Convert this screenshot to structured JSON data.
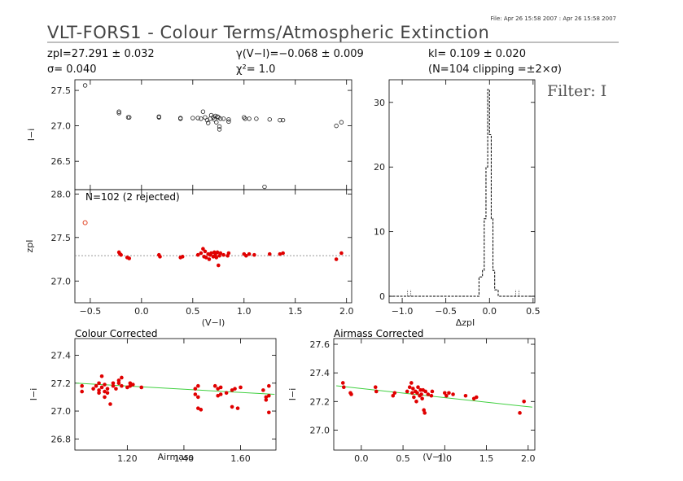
{
  "header": {
    "file_info": "File: Apr 26 15:58 2007 : Apr 26 15:58 2007",
    "title": "VLT-FORS1 - Colour Terms/Atmospheric Extinction",
    "zp_line": "zpI=27.291 ± 0.032",
    "sigma_line": "σ= 0.040",
    "gamma_line": "γ(V−I)=−0.068 ± 0.009",
    "chi_line": "χ²= 1.0",
    "k_line": "kI= 0.109 ± 0.020",
    "clip_line": "(N=104 clipping =±2×σ)",
    "filter_label": "Filter: I"
  },
  "chart_data": [
    {
      "type": "scatter",
      "panel": "I-i vs (V-I)",
      "ylabel": "I−i",
      "xlim": [
        -0.65,
        2.05
      ],
      "ylim": [
        26.1,
        27.65
      ],
      "yticks": [
        26.5,
        27.0,
        27.5
      ],
      "points": [
        [
          -0.55,
          27.57
        ],
        [
          -0.22,
          27.2
        ],
        [
          -0.22,
          27.18
        ],
        [
          -0.13,
          27.12
        ],
        [
          -0.12,
          27.12
        ],
        [
          0.17,
          27.13
        ],
        [
          0.17,
          27.12
        ],
        [
          0.38,
          27.1
        ],
        [
          0.38,
          27.11
        ],
        [
          0.5,
          27.11
        ],
        [
          0.55,
          27.11
        ],
        [
          0.58,
          27.1
        ],
        [
          0.6,
          27.2
        ],
        [
          0.62,
          27.12
        ],
        [
          0.64,
          27.08
        ],
        [
          0.65,
          27.04
        ],
        [
          0.67,
          27.1
        ],
        [
          0.68,
          27.15
        ],
        [
          0.7,
          27.12
        ],
        [
          0.71,
          27.09
        ],
        [
          0.72,
          27.14
        ],
        [
          0.73,
          27.05
        ],
        [
          0.74,
          27.13
        ],
        [
          0.75,
          27.12
        ],
        [
          0.76,
          26.95
        ],
        [
          0.76,
          26.99
        ],
        [
          0.77,
          27.1
        ],
        [
          0.8,
          27.1
        ],
        [
          0.85,
          27.06
        ],
        [
          0.85,
          27.09
        ],
        [
          1.0,
          27.12
        ],
        [
          1.01,
          27.1
        ],
        [
          1.05,
          27.1
        ],
        [
          1.12,
          27.1
        ],
        [
          1.2,
          26.14
        ],
        [
          1.25,
          27.09
        ],
        [
          1.35,
          27.08
        ],
        [
          1.38,
          27.08
        ],
        [
          1.9,
          27.0
        ],
        [
          1.95,
          27.05
        ]
      ]
    },
    {
      "type": "scatter",
      "panel": "zpI vs (V-I)",
      "ylabel": "zpI",
      "xlabel": "(V−I)",
      "annotation": "N=102 (2 rejected)",
      "xlim": [
        -0.65,
        2.05
      ],
      "ylim": [
        26.75,
        28.05
      ],
      "xticks": [
        -0.5,
        0.0,
        0.5,
        1.0,
        1.5,
        2.0
      ],
      "xtick_labels": [
        "−0.5",
        "0.0",
        "0.5",
        "1.0",
        "1.5",
        "2.0"
      ],
      "yticks": [
        27.0,
        27.5,
        28.0
      ],
      "reference_level": 27.291,
      "rejected_points": [
        [
          -0.55,
          27.67
        ]
      ],
      "points": [
        [
          -0.22,
          27.33
        ],
        [
          -0.21,
          27.31
        ],
        [
          -0.2,
          27.3
        ],
        [
          -0.14,
          27.27
        ],
        [
          -0.12,
          27.26
        ],
        [
          0.17,
          27.3
        ],
        [
          0.18,
          27.28
        ],
        [
          0.38,
          27.27
        ],
        [
          0.4,
          27.28
        ],
        [
          0.55,
          27.3
        ],
        [
          0.58,
          27.32
        ],
        [
          0.6,
          27.37
        ],
        [
          0.61,
          27.28
        ],
        [
          0.62,
          27.34
        ],
        [
          0.63,
          27.27
        ],
        [
          0.65,
          27.31
        ],
        [
          0.66,
          27.25
        ],
        [
          0.67,
          27.3
        ],
        [
          0.68,
          27.32
        ],
        [
          0.7,
          27.28
        ],
        [
          0.71,
          27.33
        ],
        [
          0.72,
          27.3
        ],
        [
          0.73,
          27.27
        ],
        [
          0.74,
          27.33
        ],
        [
          0.75,
          27.18
        ],
        [
          0.76,
          27.29
        ],
        [
          0.77,
          27.32
        ],
        [
          0.8,
          27.3
        ],
        [
          0.84,
          27.29
        ],
        [
          0.85,
          27.32
        ],
        [
          1.0,
          27.31
        ],
        [
          1.02,
          27.29
        ],
        [
          1.05,
          27.31
        ],
        [
          1.1,
          27.3
        ],
        [
          1.25,
          27.31
        ],
        [
          1.35,
          27.31
        ],
        [
          1.38,
          27.32
        ],
        [
          1.9,
          27.25
        ],
        [
          1.95,
          27.32
        ]
      ]
    },
    {
      "type": "histogram",
      "panel": "ΔzpI distribution",
      "xlabel": "ΔzpI",
      "xlim": [
        -1.15,
        0.52
      ],
      "ylim": [
        -1,
        33.5
      ],
      "xticks": [
        -1.0,
        -0.5,
        0.0,
        0.5
      ],
      "xtick_labels": [
        "−1.0",
        "−0.5",
        "0.0",
        "0.5"
      ],
      "yticks": [
        0,
        10,
        20,
        30
      ],
      "bin_edges": [
        -1.15,
        -0.12,
        -0.08,
        -0.06,
        -0.04,
        -0.02,
        0.0,
        0.02,
        0.04,
        0.06,
        0.1,
        0.52
      ],
      "counts": [
        0,
        3,
        4,
        12,
        20,
        32,
        25,
        12,
        4,
        1,
        0
      ],
      "outlier_marks": [
        [
          -0.92,
          1
        ],
        [
          0.32,
          1
        ]
      ]
    },
    {
      "type": "scatter",
      "panel": "Colour Corrected",
      "title": "Colour Corrected",
      "xlabel": "Airmass",
      "ylabel": "I−i",
      "xlim": [
        1.015,
        1.725
      ],
      "ylim": [
        26.72,
        27.52
      ],
      "xticks": [
        1.2,
        1.4,
        1.6
      ],
      "xtick_labels": [
        "1.20",
        "1.40",
        "1.60"
      ],
      "yticks": [
        26.8,
        27.0,
        27.2,
        27.4
      ],
      "fit_line": [
        [
          1.02,
          27.2
        ],
        [
          1.72,
          27.12
        ]
      ],
      "points": [
        [
          1.04,
          27.18
        ],
        [
          1.04,
          27.14
        ],
        [
          1.08,
          27.16
        ],
        [
          1.09,
          27.18
        ],
        [
          1.1,
          27.2
        ],
        [
          1.1,
          27.15
        ],
        [
          1.1,
          27.13
        ],
        [
          1.11,
          27.25
        ],
        [
          1.11,
          27.17
        ],
        [
          1.12,
          27.14
        ],
        [
          1.12,
          27.1
        ],
        [
          1.12,
          27.19
        ],
        [
          1.13,
          27.16
        ],
        [
          1.13,
          27.13
        ],
        [
          1.14,
          27.05
        ],
        [
          1.15,
          27.18
        ],
        [
          1.15,
          27.2
        ],
        [
          1.16,
          27.16
        ],
        [
          1.17,
          27.2
        ],
        [
          1.17,
          27.22
        ],
        [
          1.18,
          27.18
        ],
        [
          1.18,
          27.24
        ],
        [
          1.2,
          27.17
        ],
        [
          1.21,
          27.2
        ],
        [
          1.21,
          27.18
        ],
        [
          1.22,
          27.19
        ],
        [
          1.25,
          27.17
        ],
        [
          1.44,
          27.16
        ],
        [
          1.44,
          27.12
        ],
        [
          1.45,
          27.02
        ],
        [
          1.45,
          27.1
        ],
        [
          1.45,
          27.18
        ],
        [
          1.46,
          27.01
        ],
        [
          1.51,
          27.18
        ],
        [
          1.52,
          27.11
        ],
        [
          1.52,
          27.16
        ],
        [
          1.53,
          27.12
        ],
        [
          1.53,
          27.17
        ],
        [
          1.55,
          27.13
        ],
        [
          1.57,
          27.03
        ],
        [
          1.57,
          27.15
        ],
        [
          1.58,
          27.16
        ],
        [
          1.59,
          27.02
        ],
        [
          1.6,
          27.17
        ],
        [
          1.68,
          27.15
        ],
        [
          1.69,
          27.1
        ],
        [
          1.69,
          27.08
        ],
        [
          1.7,
          26.99
        ],
        [
          1.7,
          27.11
        ],
        [
          1.7,
          27.18
        ]
      ]
    },
    {
      "type": "scatter",
      "panel": "Airmass Corrected",
      "title": "Airmass Corrected",
      "xlabel": "(V−I)",
      "ylabel": "I−i",
      "xlim": [
        -0.33,
        2.08
      ],
      "ylim": [
        26.86,
        27.64
      ],
      "xticks": [
        0.0,
        0.5,
        1.0,
        1.5,
        2.0
      ],
      "xtick_labels": [
        "0.0",
        "0.5",
        "1.0",
        "1.5",
        "2.0"
      ],
      "yticks": [
        27.0,
        27.2,
        27.4,
        27.6
      ],
      "fit_line": [
        [
          -0.3,
          27.31
        ],
        [
          2.05,
          27.16
        ]
      ],
      "points": [
        [
          -0.22,
          27.33
        ],
        [
          -0.21,
          27.3
        ],
        [
          -0.13,
          27.26
        ],
        [
          -0.12,
          27.25
        ],
        [
          0.17,
          27.3
        ],
        [
          0.18,
          27.27
        ],
        [
          0.38,
          27.24
        ],
        [
          0.4,
          27.26
        ],
        [
          0.55,
          27.27
        ],
        [
          0.58,
          27.3
        ],
        [
          0.6,
          27.33
        ],
        [
          0.61,
          27.26
        ],
        [
          0.62,
          27.29
        ],
        [
          0.63,
          27.23
        ],
        [
          0.65,
          27.27
        ],
        [
          0.66,
          27.2
        ],
        [
          0.67,
          27.26
        ],
        [
          0.68,
          27.3
        ],
        [
          0.7,
          27.24
        ],
        [
          0.71,
          27.28
        ],
        [
          0.72,
          27.25
        ],
        [
          0.73,
          27.22
        ],
        [
          0.74,
          27.28
        ],
        [
          0.75,
          27.14
        ],
        [
          0.76,
          27.12
        ],
        [
          0.77,
          27.27
        ],
        [
          0.8,
          27.25
        ],
        [
          0.84,
          27.24
        ],
        [
          0.85,
          27.27
        ],
        [
          1.0,
          27.26
        ],
        [
          1.02,
          27.24
        ],
        [
          1.05,
          27.26
        ],
        [
          1.1,
          27.25
        ],
        [
          1.25,
          27.24
        ],
        [
          1.35,
          27.22
        ],
        [
          1.38,
          27.23
        ],
        [
          1.9,
          27.12
        ],
        [
          1.95,
          27.2
        ]
      ]
    }
  ]
}
